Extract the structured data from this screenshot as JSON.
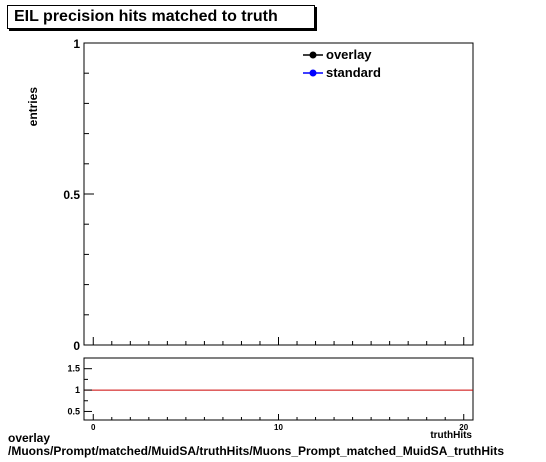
{
  "chart_data": [
    {
      "type": "line",
      "title": "EIL precision hits matched to truth",
      "ylabel": "entries",
      "xlim": [
        -0.5,
        20.5
      ],
      "ylim": [
        0,
        1
      ],
      "yticks": [
        0,
        0.5,
        1
      ],
      "ytick_labels": [
        "0",
        "0.5",
        "1"
      ],
      "legend_position": "top-right",
      "series": [
        {
          "name": "overlay",
          "color": "#000000",
          "values": []
        },
        {
          "name": "standard",
          "color": "#0000ff",
          "values": []
        }
      ],
      "legend": [
        "overlay",
        "standard"
      ]
    },
    {
      "type": "line",
      "xlim": [
        -0.5,
        20.5
      ],
      "ylim": [
        0.3,
        1.75
      ],
      "yticks": [
        0.5,
        1,
        1.5
      ],
      "ytick_labels": [
        "0.5",
        "1",
        "1.5"
      ],
      "xticks": [
        0,
        10,
        20
      ],
      "xtick_labels": [
        "0",
        "10",
        "20"
      ],
      "reference_line": {
        "y": 1,
        "color": "#cc0000"
      },
      "xlabel": "truthHits"
    }
  ],
  "footer": {
    "line1": "overlay",
    "line2": "/Muons/Prompt/matched/MuidSA/truthHits/Muons_Prompt_matched_MuidSA_truthHits"
  }
}
